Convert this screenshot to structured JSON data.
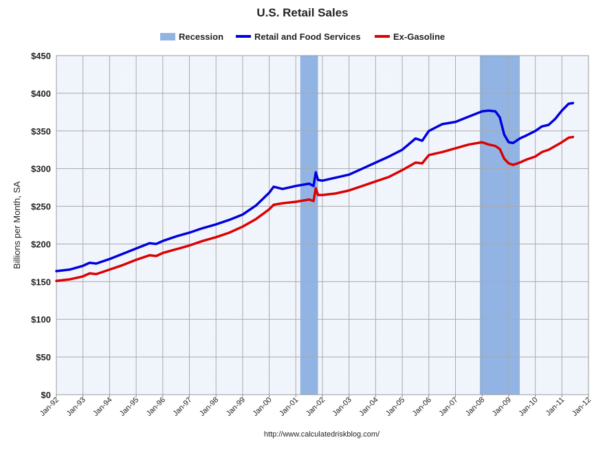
{
  "chart_data": {
    "type": "line",
    "title": "U.S. Retail Sales",
    "ylabel": "Billions per Month, SA",
    "xlabel": "",
    "source": "http://www.calculatedriskblog.com/",
    "ylim": [
      0,
      450
    ],
    "xlim": [
      "1992-01",
      "2012-01"
    ],
    "yticks": [
      0,
      50,
      100,
      150,
      200,
      250,
      300,
      350,
      400,
      450
    ],
    "ytick_labels": [
      "$0",
      "$50",
      "$100",
      "$150",
      "$200",
      "$250",
      "$300",
      "$350",
      "$400",
      "$450"
    ],
    "xticks": [
      "1992-01",
      "1993-01",
      "1994-01",
      "1995-01",
      "1996-01",
      "1997-01",
      "1998-01",
      "1999-01",
      "2000-01",
      "2001-01",
      "2002-01",
      "2003-01",
      "2004-01",
      "2005-01",
      "2006-01",
      "2007-01",
      "2008-01",
      "2009-01",
      "2010-01",
      "2011-01",
      "2012-01"
    ],
    "xtick_labels": [
      "Jan-92",
      "Jan-93",
      "Jan-94",
      "Jan-95",
      "Jan-96",
      "Jan-97",
      "Jan-98",
      "Jan-99",
      "Jan-00",
      "Jan-01",
      "Jan-02",
      "Jan-03",
      "Jan-04",
      "Jan-05",
      "Jan-06",
      "Jan-07",
      "Jan-08",
      "Jan-09",
      "Jan-10",
      "Jan-11",
      "Jan-12"
    ],
    "grid": true,
    "legend_position": "top",
    "recessions": {
      "name": "Recession",
      "color": "#92b4e4",
      "periods": [
        [
          "2001-03",
          "2001-11"
        ],
        [
          "2007-12",
          "2009-06"
        ]
      ]
    },
    "series": [
      {
        "name": "Retail and Food Services",
        "color": "#0000dd",
        "points": [
          [
            "1992-01",
            164
          ],
          [
            "1992-07",
            166
          ],
          [
            "1993-01",
            171
          ],
          [
            "1993-04",
            175
          ],
          [
            "1993-07",
            174
          ],
          [
            "1994-01",
            180
          ],
          [
            "1994-07",
            187
          ],
          [
            "1995-01",
            194
          ],
          [
            "1995-07",
            201
          ],
          [
            "1995-10",
            200
          ],
          [
            "1996-01",
            204
          ],
          [
            "1996-07",
            210
          ],
          [
            "1997-01",
            215
          ],
          [
            "1997-07",
            221
          ],
          [
            "1998-01",
            226
          ],
          [
            "1998-07",
            232
          ],
          [
            "1999-01",
            239
          ],
          [
            "1999-07",
            251
          ],
          [
            "2000-01",
            268
          ],
          [
            "2000-03",
            276
          ],
          [
            "2000-07",
            273
          ],
          [
            "2001-01",
            277
          ],
          [
            "2001-07",
            280
          ],
          [
            "2001-09",
            277
          ],
          [
            "2001-10",
            295
          ],
          [
            "2001-11",
            285
          ],
          [
            "2002-01",
            284
          ],
          [
            "2002-07",
            288
          ],
          [
            "2003-01",
            292
          ],
          [
            "2003-07",
            300
          ],
          [
            "2004-01",
            308
          ],
          [
            "2004-07",
            316
          ],
          [
            "2005-01",
            325
          ],
          [
            "2005-07",
            340
          ],
          [
            "2005-10",
            337
          ],
          [
            "2006-01",
            350
          ],
          [
            "2006-07",
            359
          ],
          [
            "2007-01",
            362
          ],
          [
            "2007-07",
            369
          ],
          [
            "2008-01",
            376
          ],
          [
            "2008-04",
            377
          ],
          [
            "2008-07",
            376
          ],
          [
            "2008-09",
            368
          ],
          [
            "2008-11",
            345
          ],
          [
            "2009-01",
            335
          ],
          [
            "2009-03",
            334
          ],
          [
            "2009-06",
            340
          ],
          [
            "2009-09",
            344
          ],
          [
            "2010-01",
            350
          ],
          [
            "2010-04",
            356
          ],
          [
            "2010-07",
            358
          ],
          [
            "2010-10",
            366
          ],
          [
            "2011-01",
            377
          ],
          [
            "2011-04",
            386
          ],
          [
            "2011-06",
            387
          ]
        ]
      },
      {
        "name": "Ex-Gasoline",
        "color": "#dd0000",
        "points": [
          [
            "1992-01",
            151
          ],
          [
            "1992-07",
            153
          ],
          [
            "1993-01",
            157
          ],
          [
            "1993-04",
            161
          ],
          [
            "1993-07",
            160
          ],
          [
            "1994-01",
            166
          ],
          [
            "1994-07",
            172
          ],
          [
            "1995-01",
            179
          ],
          [
            "1995-07",
            185
          ],
          [
            "1995-10",
            184
          ],
          [
            "1996-01",
            188
          ],
          [
            "1996-07",
            193
          ],
          [
            "1997-01",
            198
          ],
          [
            "1997-07",
            204
          ],
          [
            "1998-01",
            209
          ],
          [
            "1998-07",
            215
          ],
          [
            "1999-01",
            223
          ],
          [
            "1999-07",
            233
          ],
          [
            "2000-01",
            246
          ],
          [
            "2000-03",
            252
          ],
          [
            "2000-07",
            254
          ],
          [
            "2001-01",
            256
          ],
          [
            "2001-07",
            259
          ],
          [
            "2001-09",
            257
          ],
          [
            "2001-10",
            274
          ],
          [
            "2001-11",
            265
          ],
          [
            "2002-01",
            265
          ],
          [
            "2002-07",
            267
          ],
          [
            "2003-01",
            271
          ],
          [
            "2003-07",
            277
          ],
          [
            "2004-01",
            283
          ],
          [
            "2004-07",
            289
          ],
          [
            "2005-01",
            298
          ],
          [
            "2005-07",
            308
          ],
          [
            "2005-10",
            307
          ],
          [
            "2006-01",
            318
          ],
          [
            "2006-07",
            322
          ],
          [
            "2007-01",
            327
          ],
          [
            "2007-07",
            332
          ],
          [
            "2008-01",
            335
          ],
          [
            "2008-04",
            332
          ],
          [
            "2008-07",
            330
          ],
          [
            "2008-09",
            326
          ],
          [
            "2008-11",
            313
          ],
          [
            "2009-01",
            307
          ],
          [
            "2009-03",
            305
          ],
          [
            "2009-06",
            308
          ],
          [
            "2009-09",
            312
          ],
          [
            "2010-01",
            316
          ],
          [
            "2010-04",
            322
          ],
          [
            "2010-07",
            325
          ],
          [
            "2010-10",
            330
          ],
          [
            "2011-01",
            335
          ],
          [
            "2011-04",
            341
          ],
          [
            "2011-06",
            342
          ]
        ]
      }
    ]
  }
}
